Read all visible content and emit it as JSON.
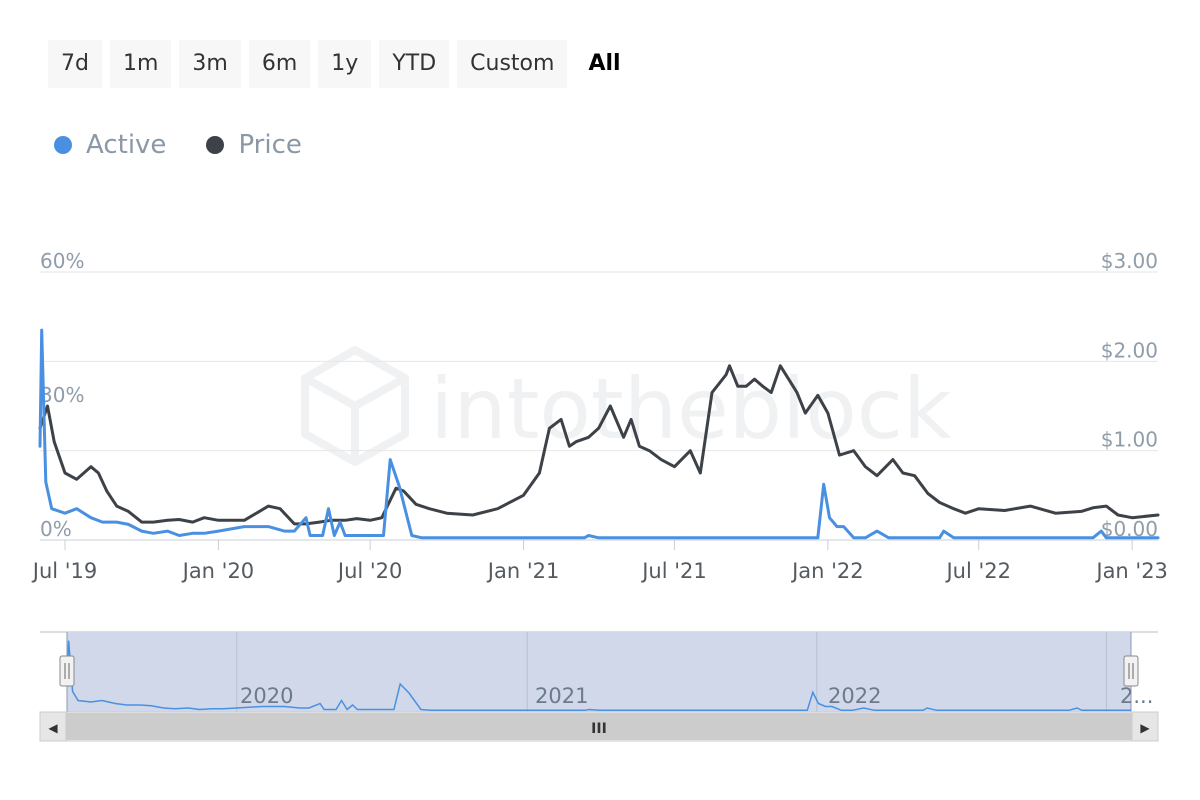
{
  "range_buttons": [
    "7d",
    "1m",
    "3m",
    "6m",
    "1y",
    "YTD",
    "Custom",
    "All"
  ],
  "selected_range": "All",
  "watermark": "intotheblock",
  "navigator": {
    "labels": [
      "2020",
      "2021",
      "2022",
      "2..."
    ],
    "scroll_grip": "III",
    "left_arrow": "◀",
    "right_arrow": "▶"
  },
  "colors": {
    "active": "#4a90e2",
    "price": "#3d4248",
    "navigator_fill": "#d0d8ea"
  },
  "chart_data": {
    "type": "line",
    "title": "",
    "legend_position": "top-left",
    "grid": true,
    "x_range": [
      "2019-06-01",
      "2023-02-01"
    ],
    "x_ticks": [
      {
        "date": "2019-07-01",
        "label": "Jul '19"
      },
      {
        "date": "2020-01-01",
        "label": "Jan '20"
      },
      {
        "date": "2020-07-01",
        "label": "Jul '20"
      },
      {
        "date": "2021-01-01",
        "label": "Jan '21"
      },
      {
        "date": "2021-07-01",
        "label": "Jul '21"
      },
      {
        "date": "2022-01-01",
        "label": "Jan '22"
      },
      {
        "date": "2022-07-01",
        "label": "Jul '22"
      },
      {
        "date": "2023-01-01",
        "label": "Jan '23"
      }
    ],
    "y_left": {
      "range": [
        0,
        60
      ],
      "ticks": [
        0,
        30,
        60
      ],
      "labels": [
        "0%",
        "30%",
        "60%"
      ]
    },
    "y_right": {
      "range": [
        0,
        3
      ],
      "ticks": [
        0,
        1,
        2,
        3
      ],
      "labels": [
        "$0.00",
        "$1.00",
        "$2.00",
        "$3.00"
      ]
    },
    "series": [
      {
        "name": "Active",
        "axis": "left",
        "x": [
          "2019-06-01",
          "2019-06-03",
          "2019-06-08",
          "2019-06-15",
          "2019-07-01",
          "2019-07-15",
          "2019-08-01",
          "2019-08-15",
          "2019-09-01",
          "2019-09-15",
          "2019-10-01",
          "2019-10-15",
          "2019-11-01",
          "2019-11-15",
          "2019-12-01",
          "2019-12-15",
          "2020-01-01",
          "2020-02-01",
          "2020-03-01",
          "2020-03-20",
          "2020-04-01",
          "2020-04-15",
          "2020-04-20",
          "2020-04-28",
          "2020-05-05",
          "2020-05-12",
          "2020-05-19",
          "2020-05-26",
          "2020-06-01",
          "2020-07-01",
          "2020-07-12",
          "2020-07-17",
          "2020-07-25",
          "2020-08-05",
          "2020-08-20",
          "2020-09-01",
          "2020-10-01",
          "2020-11-01",
          "2020-12-01",
          "2021-01-01",
          "2021-02-01",
          "2021-03-01",
          "2021-03-15",
          "2021-03-20",
          "2021-04-01",
          "2021-05-01",
          "2021-06-01",
          "2021-07-01",
          "2021-08-01",
          "2021-09-01",
          "2021-10-01",
          "2021-11-01",
          "2021-12-01",
          "2021-12-20",
          "2021-12-27",
          "2022-01-03",
          "2022-01-12",
          "2022-01-20",
          "2022-02-01",
          "2022-02-15",
          "2022-03-01",
          "2022-03-15",
          "2022-04-01",
          "2022-05-01",
          "2022-05-15",
          "2022-05-20",
          "2022-06-01",
          "2022-07-01",
          "2022-08-01",
          "2022-09-01",
          "2022-10-01",
          "2022-11-01",
          "2022-11-15",
          "2022-11-25",
          "2022-12-01",
          "2023-01-01",
          "2023-02-01"
        ],
        "y": [
          21,
          47,
          13,
          7,
          6,
          7,
          5,
          4,
          4,
          3.5,
          2,
          1.5,
          2,
          1,
          1.5,
          1.5,
          2,
          3,
          3,
          2,
          2,
          5,
          1,
          1,
          1,
          7,
          1,
          4,
          1,
          1,
          1,
          1,
          18,
          12,
          1,
          0.5,
          0.5,
          0.5,
          0.5,
          0.5,
          0.5,
          0.5,
          0.5,
          1,
          0.5,
          0.5,
          0.5,
          0.5,
          0.5,
          0.5,
          0.5,
          0.5,
          0.5,
          0.5,
          12.5,
          5,
          3,
          3,
          0.5,
          0.5,
          2,
          0.5,
          0.5,
          0.5,
          0.5,
          2,
          0.5,
          0.5,
          0.5,
          0.5,
          0.5,
          0.5,
          0.5,
          2,
          0.5,
          0.5,
          0.5
        ]
      },
      {
        "name": "Price",
        "axis": "right",
        "x": [
          "2019-06-01",
          "2019-06-10",
          "2019-06-18",
          "2019-07-01",
          "2019-07-15",
          "2019-08-01",
          "2019-08-10",
          "2019-08-20",
          "2019-09-01",
          "2019-09-15",
          "2019-10-01",
          "2019-10-15",
          "2019-11-01",
          "2019-11-15",
          "2019-12-01",
          "2019-12-15",
          "2020-01-01",
          "2020-02-01",
          "2020-03-01",
          "2020-03-15",
          "2020-04-01",
          "2020-04-15",
          "2020-05-01",
          "2020-05-15",
          "2020-06-01",
          "2020-06-15",
          "2020-07-01",
          "2020-07-15",
          "2020-08-01",
          "2020-08-10",
          "2020-08-25",
          "2020-09-10",
          "2020-10-01",
          "2020-11-01",
          "2020-12-01",
          "2021-01-01",
          "2021-01-20",
          "2021-02-01",
          "2021-02-15",
          "2021-02-25",
          "2021-03-05",
          "2021-03-20",
          "2021-04-01",
          "2021-04-15",
          "2021-05-01",
          "2021-05-10",
          "2021-05-20",
          "2021-06-01",
          "2021-06-15",
          "2021-07-01",
          "2021-07-20",
          "2021-08-01",
          "2021-08-15",
          "2021-09-01",
          "2021-09-05",
          "2021-09-15",
          "2021-09-25",
          "2021-10-05",
          "2021-10-15",
          "2021-10-25",
          "2021-11-05",
          "2021-11-15",
          "2021-11-25",
          "2021-12-05",
          "2021-12-20",
          "2022-01-01",
          "2022-01-15",
          "2022-02-01",
          "2022-02-15",
          "2022-03-01",
          "2022-03-20",
          "2022-04-01",
          "2022-04-15",
          "2022-05-01",
          "2022-05-15",
          "2022-06-01",
          "2022-06-15",
          "2022-07-01",
          "2022-08-01",
          "2022-09-01",
          "2022-10-01",
          "2022-11-01",
          "2022-11-15",
          "2022-12-01",
          "2022-12-15",
          "2023-01-01",
          "2023-02-01"
        ],
        "y": [
          1.25,
          1.5,
          1.1,
          0.75,
          0.68,
          0.82,
          0.75,
          0.55,
          0.38,
          0.32,
          0.2,
          0.2,
          0.22,
          0.23,
          0.2,
          0.25,
          0.22,
          0.22,
          0.38,
          0.35,
          0.18,
          0.18,
          0.2,
          0.22,
          0.22,
          0.24,
          0.22,
          0.25,
          0.58,
          0.55,
          0.4,
          0.35,
          0.3,
          0.28,
          0.35,
          0.5,
          0.75,
          1.25,
          1.35,
          1.05,
          1.1,
          1.15,
          1.25,
          1.5,
          1.15,
          1.35,
          1.05,
          1.0,
          0.9,
          0.82,
          1.0,
          0.75,
          1.65,
          1.85,
          1.95,
          1.72,
          1.72,
          1.8,
          1.72,
          1.65,
          1.95,
          1.8,
          1.65,
          1.42,
          1.62,
          1.42,
          0.95,
          1.0,
          0.82,
          0.72,
          0.9,
          0.75,
          0.72,
          0.52,
          0.42,
          0.35,
          0.3,
          0.35,
          0.33,
          0.38,
          0.3,
          0.32,
          0.36,
          0.38,
          0.28,
          0.25,
          0.28
        ]
      }
    ]
  }
}
